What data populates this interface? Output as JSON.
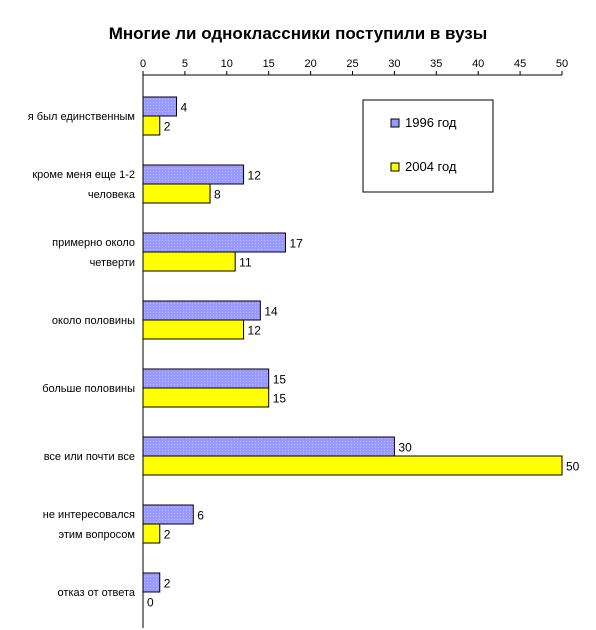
{
  "chart_data": {
    "type": "bar",
    "orientation": "horizontal",
    "title": "Многие ли одноклассники поступили в вузы",
    "xlim": [
      0,
      50
    ],
    "x_ticks": [
      0,
      5,
      10,
      15,
      20,
      25,
      30,
      35,
      40,
      45,
      50
    ],
    "x_axis_position": "top",
    "grid": false,
    "legend_position": "top-right",
    "categories": [
      [
        "я был единственным"
      ],
      [
        "кроме меня еще 1-2",
        "человека"
      ],
      [
        "примерно около",
        "четверти"
      ],
      [
        "около половины"
      ],
      [
        "больше половины"
      ],
      [
        "все или почти все"
      ],
      [
        "не интересовался",
        "этим вопросом"
      ],
      [
        "отказ от ответа"
      ]
    ],
    "series": [
      {
        "name": "1996 год",
        "color": "#9999ff",
        "values": [
          4,
          12,
          17,
          14,
          15,
          30,
          6,
          2
        ]
      },
      {
        "name": "2004 год",
        "color": "#ffff00",
        "values": [
          2,
          8,
          11,
          12,
          15,
          50,
          2,
          0
        ]
      }
    ]
  }
}
